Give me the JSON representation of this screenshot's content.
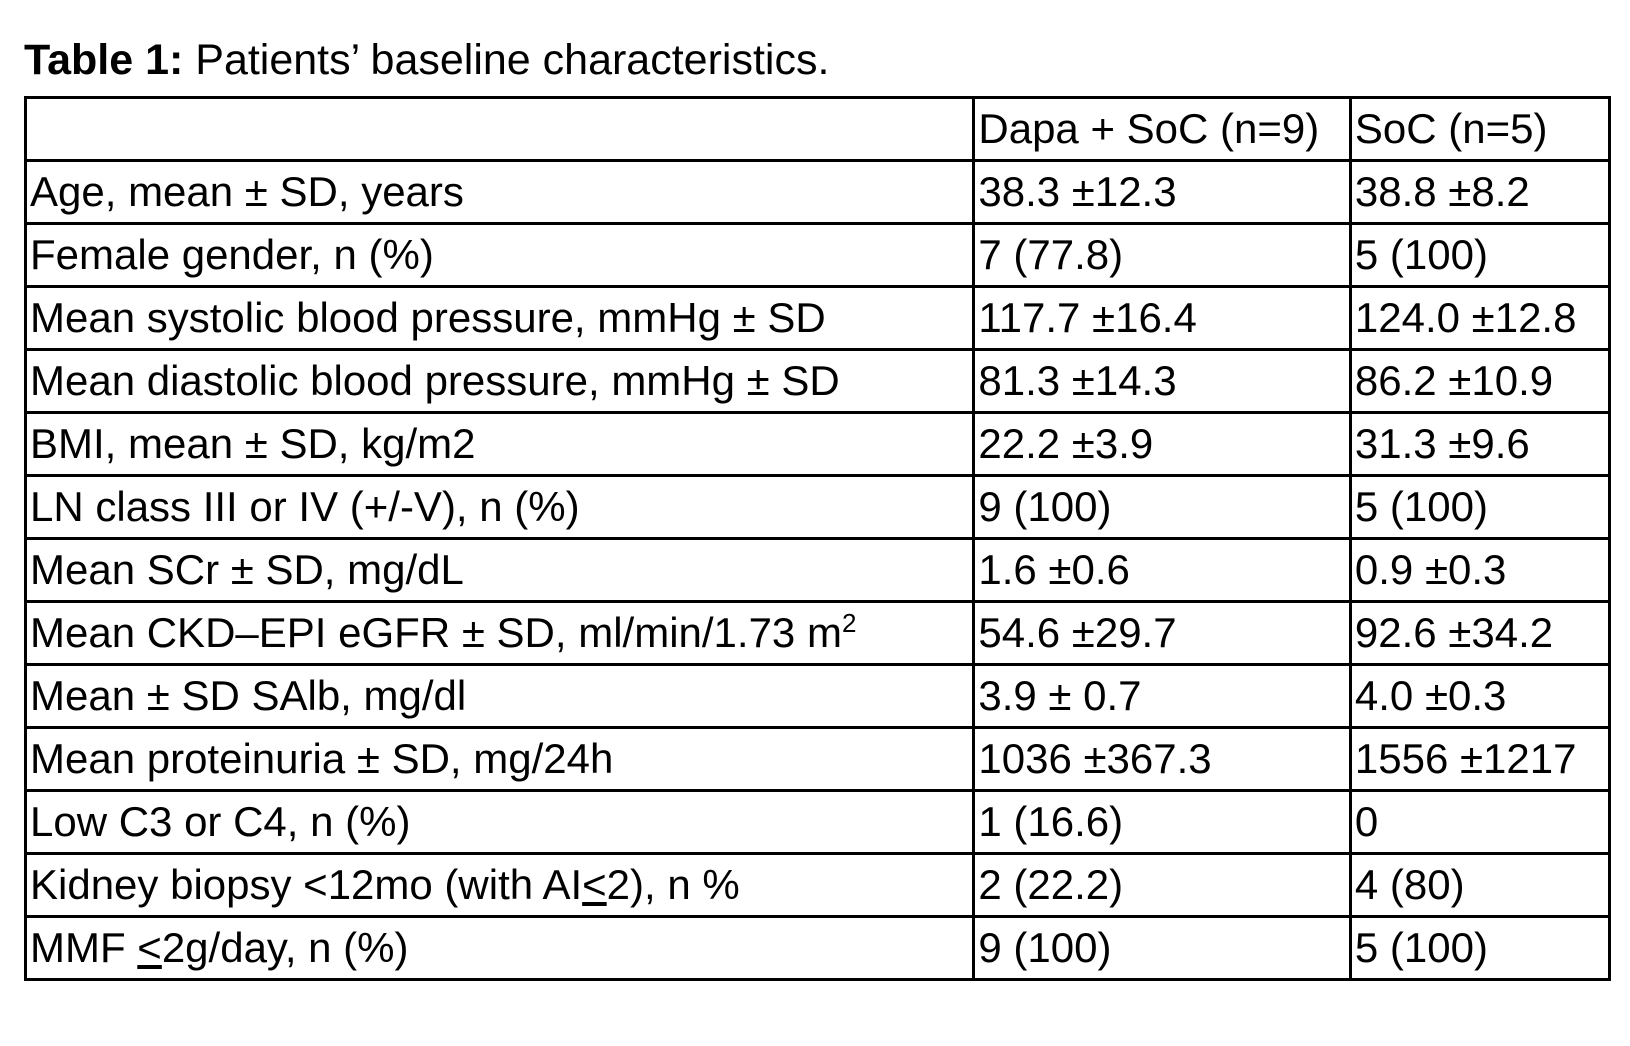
{
  "caption": {
    "label": "Table 1:",
    "text": " Patients’ baseline characteristics."
  },
  "table": {
    "headers": [
      "",
      "Dapa + SoC (n=9)",
      "SoC (n=5)"
    ],
    "rows": [
      {
        "label": "Age, mean ± SD, years",
        "dapa": "38.3 ±12.3",
        "soc": "38.8 ±8.2"
      },
      {
        "label": "Female gender, n (%)",
        "dapa": "7 (77.8)",
        "soc": "5 (100)"
      },
      {
        "label": "Mean systolic blood pressure, mmHg ± SD",
        "dapa": "117.7 ±16.4",
        "soc": "124.0 ±12.8"
      },
      {
        "label": "Mean diastolic blood pressure, mmHg ± SD",
        "dapa": "81.3 ±14.3",
        "soc": "86.2 ±10.9"
      },
      {
        "label": "BMI, mean ± SD, kg/m2",
        "dapa": "22.2 ±3.9",
        "soc": "31.3 ±9.6"
      },
      {
        "label": "LN class III or IV (+/-V), n (%)",
        "dapa": "9 (100)",
        "soc": "5 (100)"
      },
      {
        "label": "Mean SCr ± SD, mg/dL",
        "dapa": "1.6 ±0.6",
        "soc": "0.9 ±0.3"
      },
      {
        "label": "Mean CKD–EPI eGFR ± SD, ml/min/1.73 m",
        "label_sup": "2",
        "dapa": "54.6 ±29.7",
        "soc": "92.6 ±34.2"
      },
      {
        "label": "Mean ± SD SAlb, mg/dl",
        "dapa": "3.9 ± 0.7",
        "soc": "4.0 ±0.3"
      },
      {
        "label": "Mean proteinuria ± SD, mg/24h",
        "dapa": "1036 ±367.3",
        "soc": "1556 ±1217"
      },
      {
        "label": "Low C3 or C4, n (%)",
        "dapa": "1 (16.6)",
        "soc": "0"
      },
      {
        "label_pre": "Kidney biopsy <12mo (with AI",
        "label_u": "<",
        "label_post": "2), n %",
        "dapa": "2 (22.2)",
        "soc": "4 (80)"
      },
      {
        "label_pre": "MMF ",
        "label_u": "<",
        "label_post": "2g/day, n (%)",
        "dapa": "9 (100)",
        "soc": "5 (100)"
      }
    ]
  }
}
